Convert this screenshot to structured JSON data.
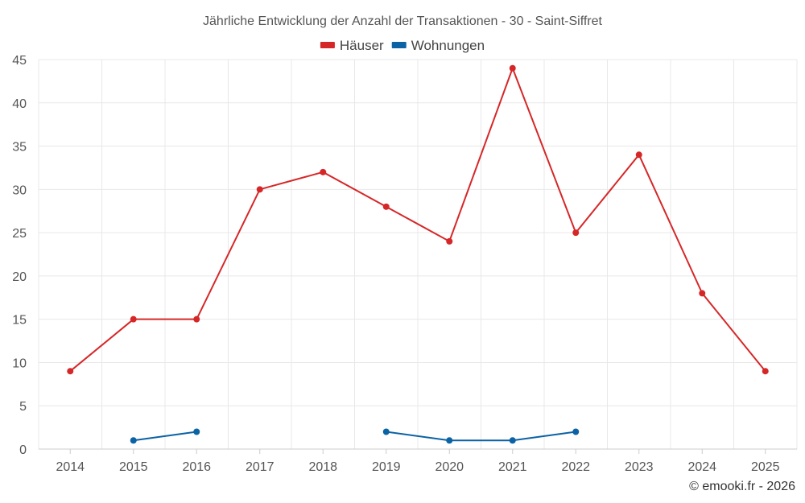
{
  "chart_data": {
    "type": "line",
    "title": "Jährliche Entwicklung der Anzahl der Transaktionen - 30 - Saint-Siffret",
    "categories": [
      "2014",
      "2015",
      "2016",
      "2017",
      "2018",
      "2019",
      "2020",
      "2021",
      "2022",
      "2023",
      "2024",
      "2025"
    ],
    "series": [
      {
        "name": "Häuser",
        "color": "#d62728",
        "values": [
          9,
          15,
          15,
          30,
          32,
          28,
          24,
          44,
          25,
          34,
          18,
          9
        ]
      },
      {
        "name": "Wohnungen",
        "color": "#0b62a4",
        "values": [
          null,
          1,
          2,
          null,
          null,
          2,
          1,
          1,
          2,
          null,
          null,
          null
        ]
      }
    ],
    "ylim": [
      0,
      45
    ],
    "yticks": [
      0,
      5,
      10,
      15,
      20,
      25,
      30,
      35,
      40,
      45
    ],
    "xlabel": "",
    "ylabel": "",
    "grid": true,
    "legend": "top-center"
  },
  "credit": "© emooki.fr - 2026"
}
